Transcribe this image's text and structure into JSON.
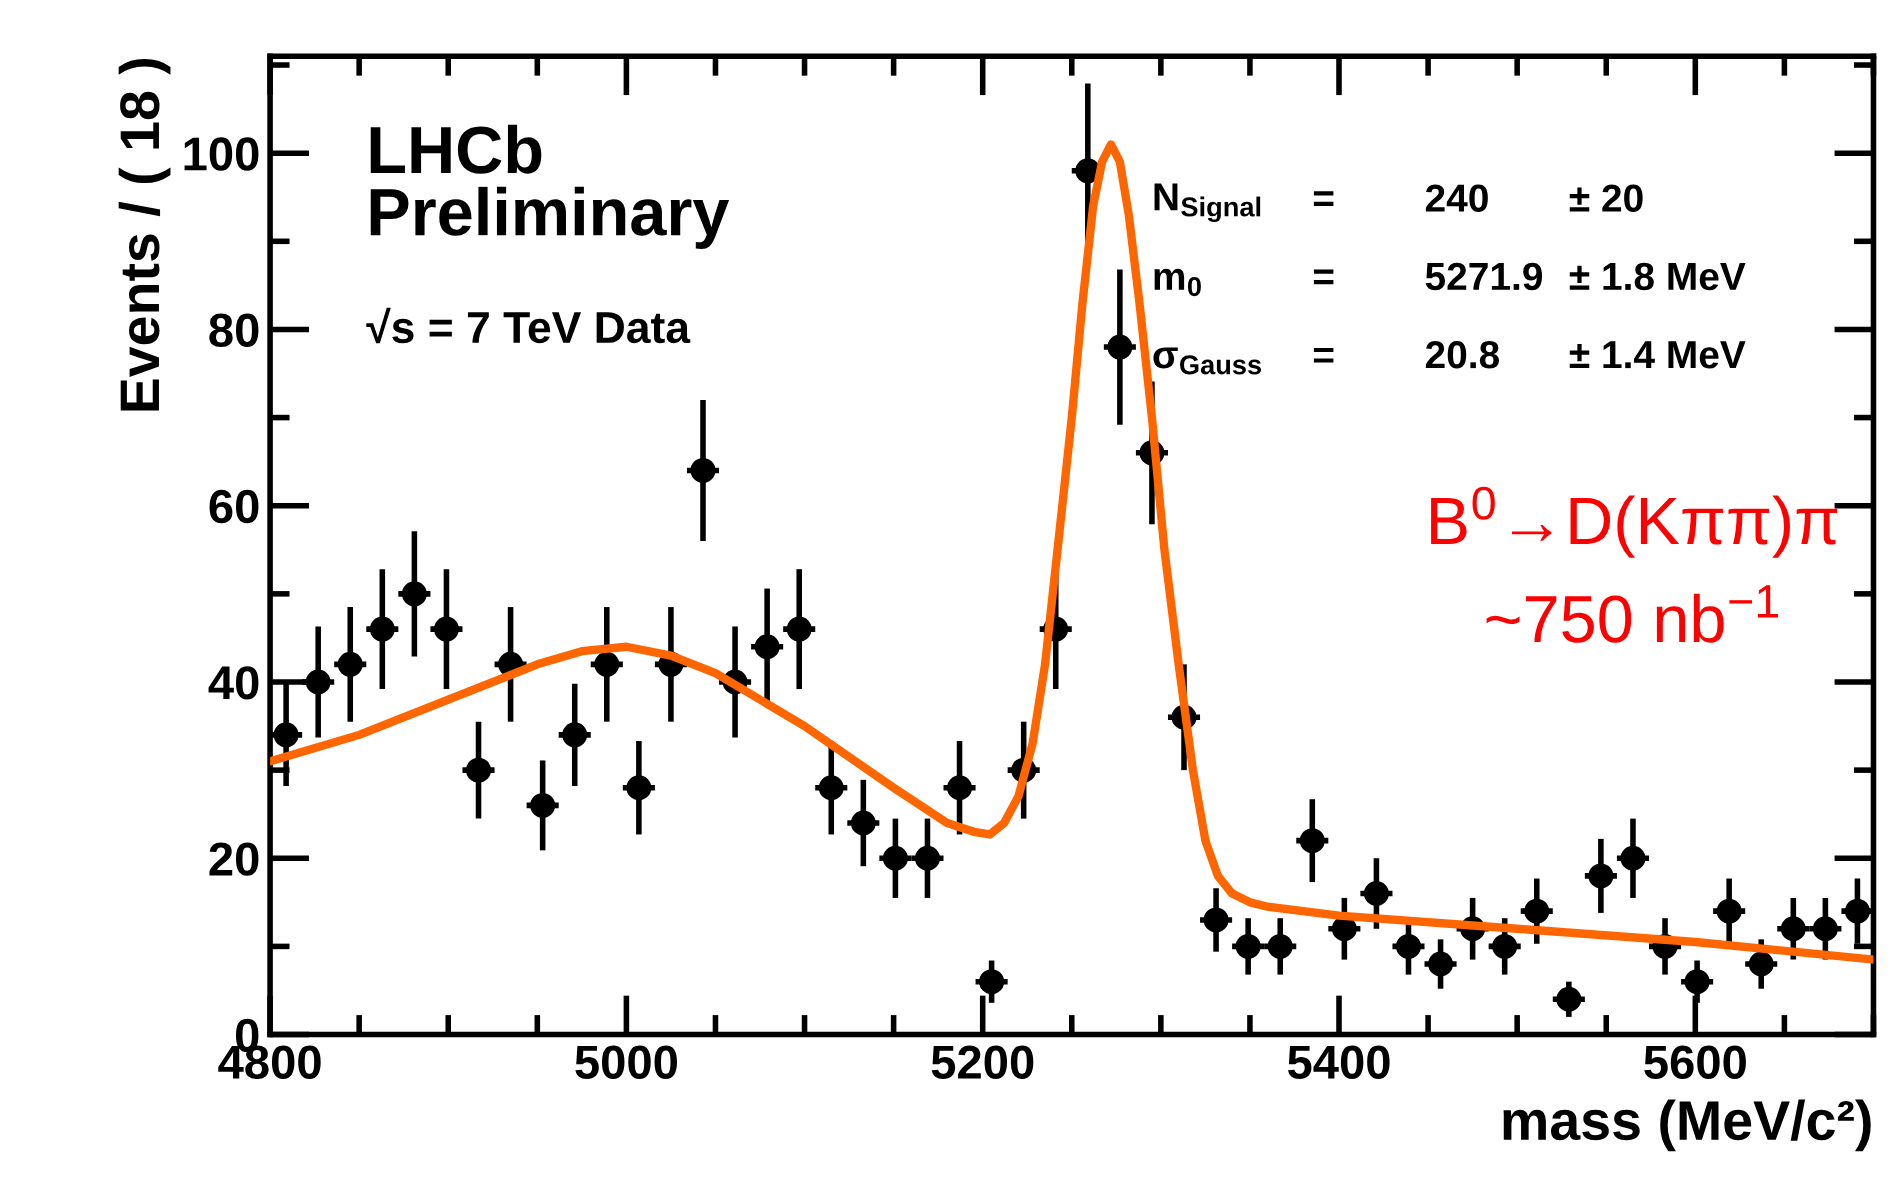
{
  "chart_data": {
    "type": "scatter",
    "xlabel": "mass (MeV/c²)",
    "ylabel": "Events / ( 18 )",
    "xlim": [
      4800,
      5700
    ],
    "ylim": [
      0,
      111
    ],
    "xticks": [
      4800,
      5000,
      5200,
      5400,
      5600
    ],
    "yticks": [
      0,
      20,
      40,
      60,
      80,
      100
    ],
    "grid": false,
    "marker": "circle",
    "series": [
      {
        "color": "#000000",
        "x": [
          4809,
          4827,
          4845,
          4863,
          4881,
          4899,
          4917,
          4935,
          4953,
          4971,
          4989,
          5007,
          5025,
          5043,
          5061,
          5079,
          5097,
          5115,
          5133,
          5151,
          5169,
          5187,
          5205,
          5223,
          5241,
          5259,
          5277,
          5295,
          5313,
          5331,
          5349,
          5367,
          5385,
          5403,
          5421,
          5439,
          5457,
          5475,
          5493,
          5511,
          5529,
          5547,
          5565,
          5583,
          5601,
          5619,
          5637,
          5655,
          5673,
          5691
        ],
        "values": [
          34,
          40,
          42,
          46,
          50,
          46,
          30,
          42,
          26,
          34,
          42,
          28,
          42,
          64,
          40,
          44,
          46,
          28,
          24,
          20,
          20,
          28,
          6,
          30,
          46,
          98,
          78,
          66,
          36,
          13,
          10,
          10,
          22,
          12,
          16,
          10,
          8,
          12,
          10,
          14,
          4,
          18,
          20,
          10,
          6,
          14,
          8,
          12,
          12,
          14
        ],
        "errors": [
          5.8,
          6.3,
          6.5,
          6.8,
          7.1,
          6.8,
          5.5,
          6.5,
          5.1,
          5.8,
          6.5,
          5.3,
          6.5,
          8.0,
          6.3,
          6.6,
          6.8,
          5.3,
          4.9,
          4.5,
          4.5,
          5.3,
          2.4,
          5.5,
          6.8,
          9.9,
          8.8,
          8.1,
          6.0,
          3.6,
          3.2,
          3.2,
          4.7,
          3.5,
          4.0,
          3.2,
          2.8,
          3.5,
          3.2,
          3.7,
          2.0,
          4.2,
          4.5,
          3.2,
          2.4,
          3.7,
          2.8,
          3.5,
          3.5,
          3.7
        ],
        "xerrors": [
          9,
          9,
          9,
          9,
          9,
          9,
          9,
          9,
          9,
          9,
          9,
          9,
          9,
          9,
          9,
          9,
          9,
          9,
          9,
          9,
          9,
          9,
          9,
          9,
          9,
          9,
          9,
          9,
          9,
          9,
          9,
          9,
          9,
          9,
          9,
          9,
          9,
          9,
          9,
          9,
          9,
          9,
          9,
          9,
          9,
          9,
          9,
          9,
          9,
          9
        ]
      },
      {
        "type": "line",
        "color": "#ff6600",
        "marker": "none",
        "line_style": "solid",
        "x": [
          4800,
          4850,
          4900,
          4950,
          4975,
          5000,
          5025,
          5050,
          5100,
          5150,
          5180,
          5195,
          5204,
          5212,
          5220,
          5228,
          5235,
          5242,
          5250,
          5256,
          5262,
          5267,
          5272,
          5277,
          5282,
          5288,
          5295,
          5302,
          5310,
          5318,
          5325,
          5332,
          5340,
          5350,
          5360,
          5400,
          5500,
          5600,
          5700
        ],
        "values": [
          31,
          34,
          38,
          42,
          43.5,
          44,
          43,
          41,
          35,
          28,
          24,
          23,
          22.7,
          24,
          27,
          33,
          42,
          55,
          70,
          83,
          94,
          99,
          101,
          99,
          93,
          83,
          70,
          55,
          42,
          30,
          22,
          18,
          16,
          15,
          14.5,
          13.5,
          12,
          10.5,
          8.5
        ]
      }
    ],
    "annotations": [
      "LHCb\nPreliminary",
      "√s = 7 TeV Data",
      "N$_{Signal}$",
      "=",
      "240",
      "± 20",
      "m$_{0}$",
      "=",
      "5271.9",
      "± 1.8 MeV",
      "σ$_{Gauss}$",
      "=",
      "20.8",
      "± 1.4 MeV",
      "B$^{0}$→D(Kππ)π",
      "~750 nb$^{−1}$"
    ]
  }
}
